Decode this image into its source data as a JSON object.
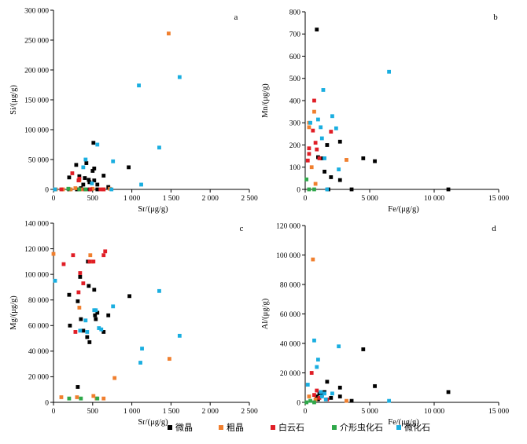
{
  "legend": {
    "entries": [
      {
        "name": "微晶",
        "color": "#000000"
      },
      {
        "name": "粗晶",
        "color": "#f07f2e"
      },
      {
        "name": "白云石",
        "color": "#e01e26"
      },
      {
        "name": "介形虫化石",
        "color": "#2fa84a"
      },
      {
        "name": "微化石",
        "color": "#1aaee0"
      }
    ]
  },
  "chart_data": [
    {
      "type": "scatter",
      "panel_label": "a",
      "xlabel": "Sr/(μg/g)",
      "ylabel": "Si/(μg/g)",
      "xlim": [
        0,
        2500
      ],
      "ylim": [
        0,
        300000
      ],
      "xticks": [
        0,
        500,
        1000,
        1500,
        2000,
        2500
      ],
      "xtick_labels": [
        "0",
        "500",
        "1 000",
        "1 500",
        "2 000",
        "2 500"
      ],
      "yticks": [
        0,
        50000,
        100000,
        150000,
        200000,
        250000,
        300000
      ],
      "ytick_labels": [
        "0",
        "50 000",
        "100 000",
        "150 000",
        "200 000",
        "250 000",
        "300 000"
      ],
      "grid": false,
      "series": [
        {
          "name": "微晶",
          "points": [
            [
              200,
              20000
            ],
            [
              290,
              41000
            ],
            [
              330,
              22000
            ],
            [
              380,
              8000
            ],
            [
              400,
              19000
            ],
            [
              420,
              44000
            ],
            [
              450,
              16000
            ],
            [
              460,
              12000
            ],
            [
              500,
              31000
            ],
            [
              520,
              35000
            ],
            [
              510,
              78000
            ],
            [
              520,
              15000
            ],
            [
              560,
              8000
            ],
            [
              640,
              23000
            ],
            [
              700,
              4000
            ],
            [
              960,
              37000
            ],
            [
              200,
              0
            ],
            [
              300,
              0
            ],
            [
              350,
              2000
            ],
            [
              460,
              0
            ],
            [
              560,
              0
            ]
          ]
        },
        {
          "name": "粗晶",
          "points": [
            [
              30,
              0
            ],
            [
              120,
              0
            ],
            [
              220,
              0
            ],
            [
              280,
              2000
            ],
            [
              330,
              15000
            ],
            [
              350,
              0
            ],
            [
              500,
              1000
            ],
            [
              640,
              0
            ],
            [
              720,
              1000
            ],
            [
              1470,
              261000
            ]
          ]
        },
        {
          "name": "白云石",
          "points": [
            [
              100,
              0
            ],
            [
              240,
              27000
            ],
            [
              320,
              15000
            ],
            [
              330,
              18000
            ],
            [
              400,
              0
            ],
            [
              470,
              0
            ],
            [
              600,
              0
            ],
            [
              640,
              0
            ]
          ]
        },
        {
          "name": "介形虫化石",
          "points": [
            [
              190,
              1000
            ],
            [
              330,
              0
            ],
            [
              410,
              0
            ]
          ]
        },
        {
          "name": "微化石",
          "points": [
            [
              20,
              0
            ],
            [
              380,
              37000
            ],
            [
              410,
              50000
            ],
            [
              490,
              10000
            ],
            [
              560,
              75000
            ],
            [
              760,
              47000
            ],
            [
              1090,
              174000
            ],
            [
              1120,
              8000
            ],
            [
              1350,
              70000
            ],
            [
              1610,
              188000
            ],
            [
              740,
              0
            ]
          ]
        }
      ]
    },
    {
      "type": "scatter",
      "panel_label": "b",
      "xlabel": "Fe/(μg/g)",
      "ylabel": "Mn/(μg/g)",
      "xlim": [
        0,
        15000
      ],
      "ylim": [
        0,
        800
      ],
      "xticks": [
        0,
        5000,
        10000,
        15000
      ],
      "xtick_labels": [
        "0",
        "5 000",
        "10 000",
        "15 000"
      ],
      "yticks": [
        0,
        100,
        200,
        300,
        400,
        500,
        600,
        700,
        800
      ],
      "ytick_labels": [
        "0",
        "100",
        "200",
        "300",
        "400",
        "500",
        "600",
        "700",
        "800"
      ],
      "grid": false,
      "series": [
        {
          "name": "微晶",
          "points": [
            [
              900,
              720
            ],
            [
              1000,
              145
            ],
            [
              1300,
              140
            ],
            [
              1500,
              80
            ],
            [
              1700,
              200
            ],
            [
              2000,
              55
            ],
            [
              2700,
              215
            ],
            [
              2700,
              42
            ],
            [
              4500,
              140
            ],
            [
              5400,
              127
            ],
            [
              11100,
              0
            ],
            [
              3600,
              0
            ],
            [
              1800,
              0
            ]
          ]
        },
        {
          "name": "粗晶",
          "points": [
            [
              300,
              300
            ],
            [
              500,
              100
            ],
            [
              700,
              350
            ],
            [
              800,
              25
            ],
            [
              3200,
              133
            ],
            [
              300,
              280
            ]
          ]
        },
        {
          "name": "白云石",
          "points": [
            [
              200,
              130
            ],
            [
              300,
              185
            ],
            [
              600,
              265
            ],
            [
              700,
              400
            ],
            [
              800,
              210
            ],
            [
              900,
              180
            ],
            [
              1100,
              140
            ],
            [
              2000,
              260
            ],
            [
              300,
              160
            ]
          ]
        },
        {
          "name": "介形虫化石",
          "points": [
            [
              100,
              45
            ],
            [
              300,
              0
            ],
            [
              700,
              0
            ]
          ]
        },
        {
          "name": "微化石",
          "points": [
            [
              400,
              300
            ],
            [
              1000,
              315
            ],
            [
              1200,
              280
            ],
            [
              1300,
              230
            ],
            [
              1400,
              448
            ],
            [
              1500,
              140
            ],
            [
              2100,
              330
            ],
            [
              2400,
              275
            ],
            [
              2600,
              90
            ],
            [
              6500,
              530
            ],
            [
              1700,
              0
            ]
          ]
        }
      ]
    },
    {
      "type": "scatter",
      "panel_label": "c",
      "xlabel": "Sr/(μg/g)",
      "ylabel": "Mg/(μg/g)",
      "xlim": [
        0,
        2500
      ],
      "ylim": [
        0,
        140000
      ],
      "xticks": [
        0,
        500,
        1000,
        1500,
        2000,
        2500
      ],
      "xtick_labels": [
        "0",
        "500",
        "1 000",
        "1 500",
        "2 000",
        "2 500"
      ],
      "yticks": [
        0,
        20000,
        40000,
        60000,
        80000,
        100000,
        120000,
        140000
      ],
      "ytick_labels": [
        "0",
        "20 000",
        "40 000",
        "60 000",
        "80 000",
        "100 000",
        "120 000",
        "140 000"
      ],
      "grid": false,
      "series": [
        {
          "name": "微晶",
          "points": [
            [
              200,
              84000
            ],
            [
              210,
              60000
            ],
            [
              310,
              79000
            ],
            [
              340,
              98000
            ],
            [
              350,
              65000
            ],
            [
              380,
              56000
            ],
            [
              430,
              51000
            ],
            [
              440,
              110000
            ],
            [
              450,
              91000
            ],
            [
              460,
              47000
            ],
            [
              520,
              88000
            ],
            [
              530,
              68000
            ],
            [
              540,
              65000
            ],
            [
              560,
              70000
            ],
            [
              640,
              55000
            ],
            [
              700,
              68000
            ],
            [
              970,
              83000
            ],
            [
              310,
              12000
            ]
          ]
        },
        {
          "name": "粗晶",
          "points": [
            [
              0,
              116000
            ],
            [
              100,
              4000
            ],
            [
              300,
              4000
            ],
            [
              330,
              74000
            ],
            [
              470,
              115000
            ],
            [
              490,
              110000
            ],
            [
              510,
              5000
            ],
            [
              550,
              3000
            ],
            [
              640,
              3000
            ],
            [
              780,
              19000
            ],
            [
              1480,
              34000
            ]
          ]
        },
        {
          "name": "白云石",
          "points": [
            [
              130,
              108000
            ],
            [
              250,
              115000
            ],
            [
              280,
              55000
            ],
            [
              320,
              86000
            ],
            [
              340,
              101000
            ],
            [
              380,
              93000
            ],
            [
              460,
              110000
            ],
            [
              510,
              110000
            ],
            [
              640,
              115000
            ],
            [
              660,
              118000
            ]
          ]
        },
        {
          "name": "介形虫化石",
          "points": [
            [
              200,
              3000
            ],
            [
              350,
              3000
            ],
            [
              560,
              3000
            ]
          ]
        },
        {
          "name": "微化石",
          "points": [
            [
              20,
              95000
            ],
            [
              340,
              56000
            ],
            [
              410,
              64000
            ],
            [
              430,
              55000
            ],
            [
              520,
              72000
            ],
            [
              540,
              72000
            ],
            [
              580,
              58000
            ],
            [
              760,
              75000
            ],
            [
              1110,
              31000
            ],
            [
              1130,
              42000
            ],
            [
              1350,
              87000
            ],
            [
              1610,
              52000
            ],
            [
              610,
              57000
            ]
          ]
        }
      ]
    },
    {
      "type": "scatter",
      "panel_label": "d",
      "xlabel": "Fe/(μg/g)",
      "ylabel": "Al/(μg/g)",
      "xlim": [
        0,
        15000
      ],
      "ylim": [
        0,
        120000
      ],
      "xticks": [
        0,
        5000,
        10000,
        15000
      ],
      "xtick_labels": [
        "0",
        "5 000",
        "10 000",
        "15 000"
      ],
      "yticks": [
        0,
        20000,
        40000,
        60000,
        80000,
        100000,
        120000
      ],
      "ytick_labels": [
        "0",
        "20 000",
        "40 000",
        "60 000",
        "80 000",
        "100 000",
        "120 000"
      ],
      "grid": false,
      "series": [
        {
          "name": "微晶",
          "points": [
            [
              900,
              4000
            ],
            [
              1100,
              6000
            ],
            [
              1300,
              5000
            ],
            [
              1500,
              7000
            ],
            [
              1700,
              14000
            ],
            [
              2000,
              3000
            ],
            [
              2700,
              10000
            ],
            [
              2700,
              4000
            ],
            [
              4500,
              36000
            ],
            [
              5400,
              11000
            ],
            [
              11100,
              7000
            ],
            [
              3600,
              1000
            ],
            [
              1000,
              2000
            ]
          ]
        },
        {
          "name": "粗晶",
          "points": [
            [
              600,
              97000
            ],
            [
              300,
              4000
            ],
            [
              800,
              2000
            ],
            [
              3200,
              1000
            ]
          ]
        },
        {
          "name": "白云石",
          "points": [
            [
              500,
              20000
            ],
            [
              700,
              5000
            ],
            [
              900,
              8000
            ],
            [
              1100,
              3000
            ],
            [
              1700,
              2000
            ]
          ]
        },
        {
          "name": "介形虫化石",
          "points": [
            [
              100,
              0
            ],
            [
              400,
              1000
            ],
            [
              700,
              0
            ]
          ]
        },
        {
          "name": "微化石",
          "points": [
            [
              200,
              12000
            ],
            [
              700,
              42000
            ],
            [
              900,
              24000
            ],
            [
              1000,
              29000
            ],
            [
              1200,
              7000
            ],
            [
              1300,
              4000
            ],
            [
              1500,
              6000
            ],
            [
              2100,
              6000
            ],
            [
              2600,
              38000
            ],
            [
              6500,
              1000
            ],
            [
              1600,
              2000
            ]
          ]
        }
      ]
    }
  ]
}
